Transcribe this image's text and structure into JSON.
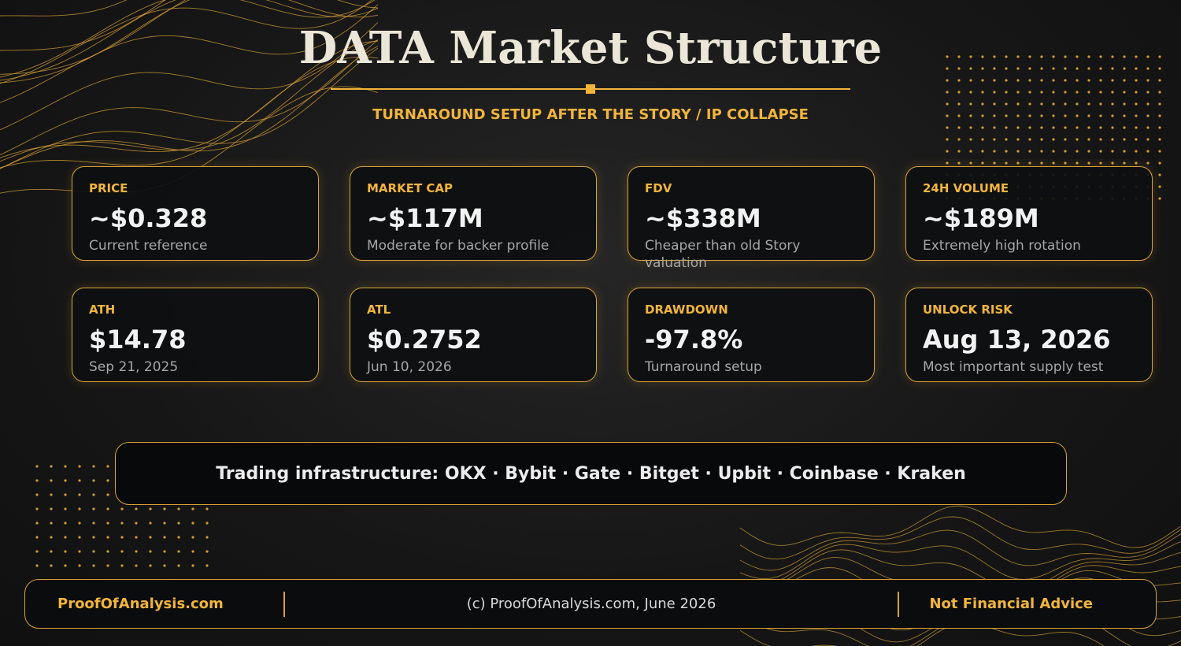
{
  "header": {
    "title": "DATA Market Structure",
    "subtitle": "TURNAROUND SETUP AFTER THE STORY / IP COLLAPSE"
  },
  "cards": [
    {
      "label": "PRICE",
      "value": "~$0.328",
      "note": "Current reference"
    },
    {
      "label": "MARKET CAP",
      "value": "~$117M",
      "note": "Moderate for backer profile"
    },
    {
      "label": "FDV",
      "value": "~$338M",
      "note": "Cheaper than old Story valuation"
    },
    {
      "label": "24H VOLUME",
      "value": "~$189M",
      "note": "Extremely high rotation"
    },
    {
      "label": "ATH",
      "value": "$14.78",
      "note": "Sep 21, 2025"
    },
    {
      "label": "ATL",
      "value": "$0.2752",
      "note": "Jun 10, 2026"
    },
    {
      "label": "DRAWDOWN",
      "value": "-97.8%",
      "note": "Turnaround setup"
    },
    {
      "label": "UNLOCK RISK",
      "value": "Aug 13, 2026",
      "note": "Most important supply test"
    }
  ],
  "exchanges": "Trading infrastructure: OKX · Bybit · Gate · Bitget · Upbit · Coinbase · Kraken",
  "footer": {
    "left": "ProofOfAnalysis.com",
    "center": "(c) ProofOfAnalysis.com, June 2026",
    "right": "Not Financial Advice"
  }
}
